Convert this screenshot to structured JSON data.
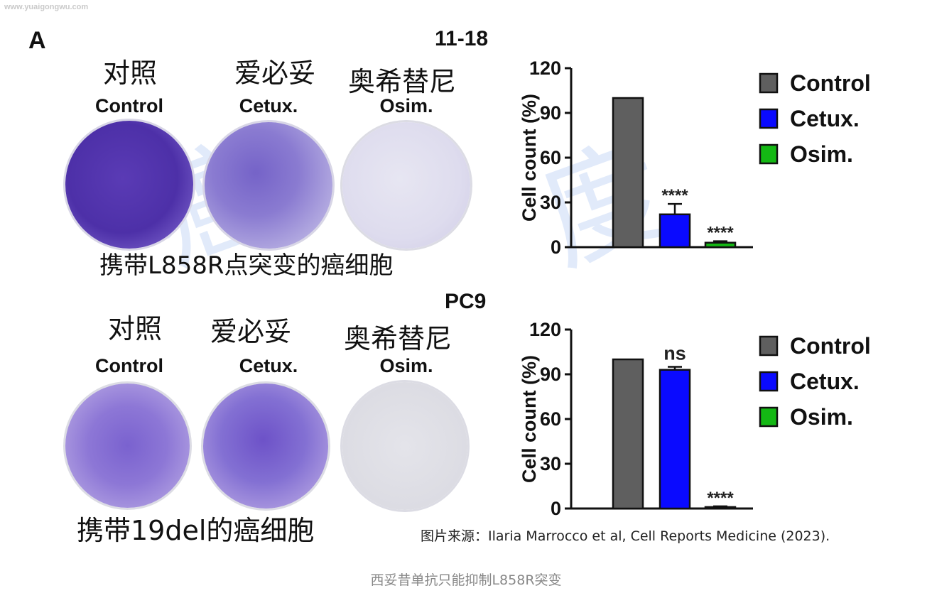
{
  "watermark_site": "www.yuaigongwu.com",
  "watermark_text": [
    "癌",
    "度"
  ],
  "panel_letter": "A",
  "top": {
    "cell_line": "11-18",
    "zh_labels": [
      "对照",
      "爱必妥",
      "奥希替尼"
    ],
    "en_labels": [
      "Control",
      "Cetux.",
      "Osim."
    ],
    "caption": "携带L858R点突变的癌细胞"
  },
  "bottom": {
    "cell_line": "PC9",
    "zh_labels": [
      "对照",
      "爱必妥",
      "奥希替尼"
    ],
    "en_labels": [
      "Control",
      "Cetux.",
      "Osim."
    ],
    "caption": "携带19del的癌细胞"
  },
  "legend": [
    "Control",
    "Cetux.",
    "Osim."
  ],
  "colors": {
    "control": "#5f5f5f",
    "cetux": "#0a0aff",
    "osim": "#14b814",
    "dish_stain": "#5b3fb8"
  },
  "credit": "图片来源：Ilaria Marrocco et al, Cell Reports Medicine (2023).",
  "caption": "西妥昔单抗只能抑制L858R突变",
  "chart_data": [
    {
      "type": "bar",
      "title": "11-18",
      "categories": [
        "Control",
        "Cetux.",
        "Osim."
      ],
      "values": [
        100,
        22,
        3
      ],
      "errors": [
        0,
        7,
        1
      ],
      "annotations": [
        "",
        "****",
        "****"
      ],
      "ylabel": "Cell count (%)",
      "ylim": [
        0,
        120
      ],
      "yticks": [
        0,
        30,
        60,
        90,
        120
      ],
      "legend_position": "right"
    },
    {
      "type": "bar",
      "title": "PC9",
      "categories": [
        "Control",
        "Cetux.",
        "Osim."
      ],
      "values": [
        100,
        93,
        1
      ],
      "errors": [
        0,
        2,
        0.5
      ],
      "annotations": [
        "",
        "ns",
        "****"
      ],
      "ylabel": "Cell count (%)",
      "ylim": [
        0,
        120
      ],
      "yticks": [
        0,
        30,
        60,
        90,
        120
      ],
      "legend_position": "right"
    }
  ]
}
